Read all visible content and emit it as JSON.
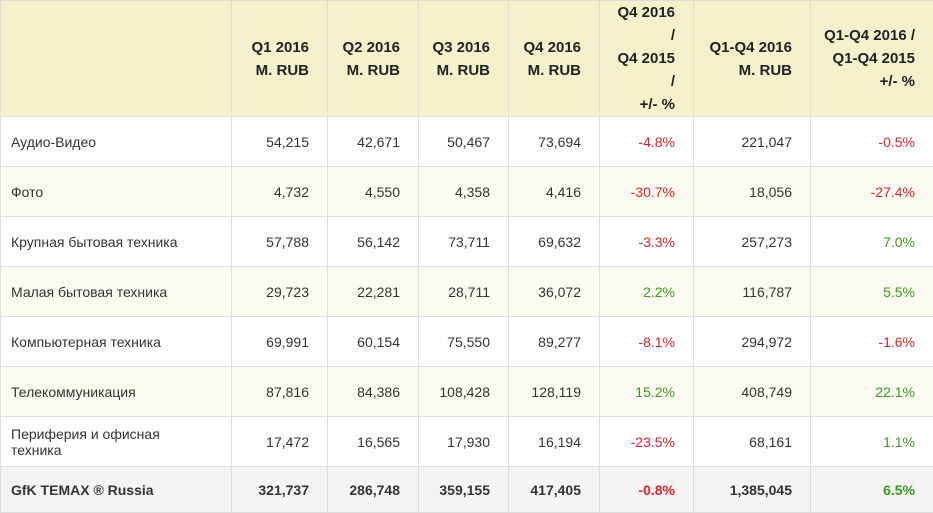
{
  "colors": {
    "negative": "#e3202a",
    "positive": "#3a9a1a",
    "header_bg": "#f4f0cb"
  },
  "table": {
    "headers": [
      [
        ""
      ],
      [
        "Q1 2016",
        "M. RUB"
      ],
      [
        "Q2 2016",
        "M. RUB"
      ],
      [
        "Q3 2016",
        "M. RUB"
      ],
      [
        "Q4 2016",
        "M. RUB"
      ],
      [
        "Q4 2016 /",
        "Q4 2015 /",
        "+/- %"
      ],
      [
        "Q1-Q4 2016",
        "M. RUB"
      ],
      [
        "Q1-Q4 2016 /",
        "Q1-Q4 2015",
        "+/- %"
      ]
    ],
    "rows": [
      [
        "Аудио-Видео",
        "54,215",
        "42,671",
        "50,467",
        "73,694",
        "-4.8%",
        "221,047",
        "-0.5%"
      ],
      [
        "Фото",
        "4,732",
        "4,550",
        "4,358",
        "4,416",
        "-30.7%",
        "18,056",
        "-27.4%"
      ],
      [
        "Крупная бытовая техника",
        "57,788",
        "56,142",
        "73,711",
        "69,632",
        "-3.3%",
        "257,273",
        "7.0%"
      ],
      [
        "Малая бытовая техника",
        "29,723",
        "22,281",
        "28,711",
        "36,072",
        "2.2%",
        "116,787",
        "5.5%"
      ],
      [
        "Компьютерная техника",
        "69,991",
        "60,154",
        "75,550",
        "89,277",
        "-8.1%",
        "294,972",
        "-1.6%"
      ],
      [
        "Телекоммуникация",
        "87,816",
        "84,386",
        "108,428",
        "128,119",
        "15.2%",
        "408,749",
        "22.1%"
      ],
      [
        "Периферия и офисная техника",
        "17,472",
        "16,565",
        "17,930",
        "16,194",
        "-23.5%",
        "68,161",
        "1.1%"
      ]
    ],
    "total": [
      "GfK TEMAX ® Russia",
      "321,737",
      "286,748",
      "359,155",
      "417,405",
      "-0.8%",
      "1,385,045",
      "6.5%"
    ]
  }
}
